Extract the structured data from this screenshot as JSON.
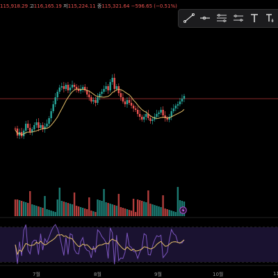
{
  "ohlc": {
    "open_value": "115,918.29",
    "high_key": "고",
    "high_value": "116,165.19",
    "low_key": "저",
    "low_value": "115,224.11",
    "close_key": "종",
    "close_value": "115,321.64",
    "change": "−596.65 (−0.51%)"
  },
  "toolbar": {
    "tools": [
      {
        "name": "trend-line-icon"
      },
      {
        "name": "horizontal-ray-icon"
      },
      {
        "name": "fib-retracement-icon"
      },
      {
        "name": "parallel-channel-icon"
      },
      {
        "name": "text-icon"
      },
      {
        "name": "anchored-text-icon"
      }
    ]
  },
  "xaxis": {
    "labels": [
      "7월",
      "8월",
      "9월",
      "10월",
      "11"
    ]
  },
  "colors": {
    "up": "#26a69a",
    "down": "#ef5350",
    "ma": "#e8c26b",
    "rsi": "#7e57c2",
    "rsi_ma": "#e8c26b",
    "price_line": "#8b2a2a"
  },
  "chart_data": {
    "type": "candlestick",
    "panes": [
      "price",
      "volume",
      "rsi"
    ],
    "x_labels": [
      "7월",
      "8월",
      "9월",
      "10월",
      "11"
    ],
    "series": [
      {
        "name": "price",
        "type": "candlestick"
      },
      {
        "name": "moving-average",
        "type": "line"
      },
      {
        "name": "volume",
        "type": "bar"
      },
      {
        "name": "rsi",
        "type": "line"
      },
      {
        "name": "rsi-ma",
        "type": "line"
      }
    ]
  }
}
